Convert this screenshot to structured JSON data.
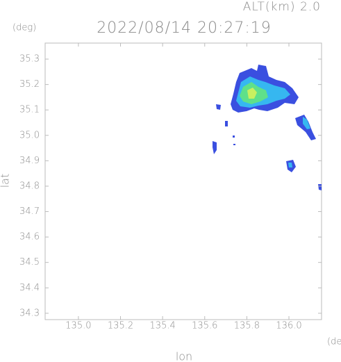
{
  "chart_data": {
    "type": "map",
    "title": "2022/08/14 20:27:19",
    "altitude": "ALT(km) 2.0",
    "x_label": "lon",
    "y_label": "lat",
    "x_unit": "(deg)",
    "y_unit": "(deg)",
    "xlim": [
      134.842,
      136.155
    ],
    "ylim": [
      34.275,
      35.363
    ],
    "xticks": [
      {
        "value": 135,
        "label": "135.0"
      },
      135.2,
      135.4,
      135.6,
      135.8,
      {
        "value": 136,
        "label": "136.0"
      }
    ],
    "yticks": [
      34.3,
      34.4,
      34.5,
      34.6,
      34.7,
      34.8,
      34.9,
      {
        "value": 35,
        "label": "35.0"
      },
      35.1,
      35.2,
      35.3
    ]
  }
}
